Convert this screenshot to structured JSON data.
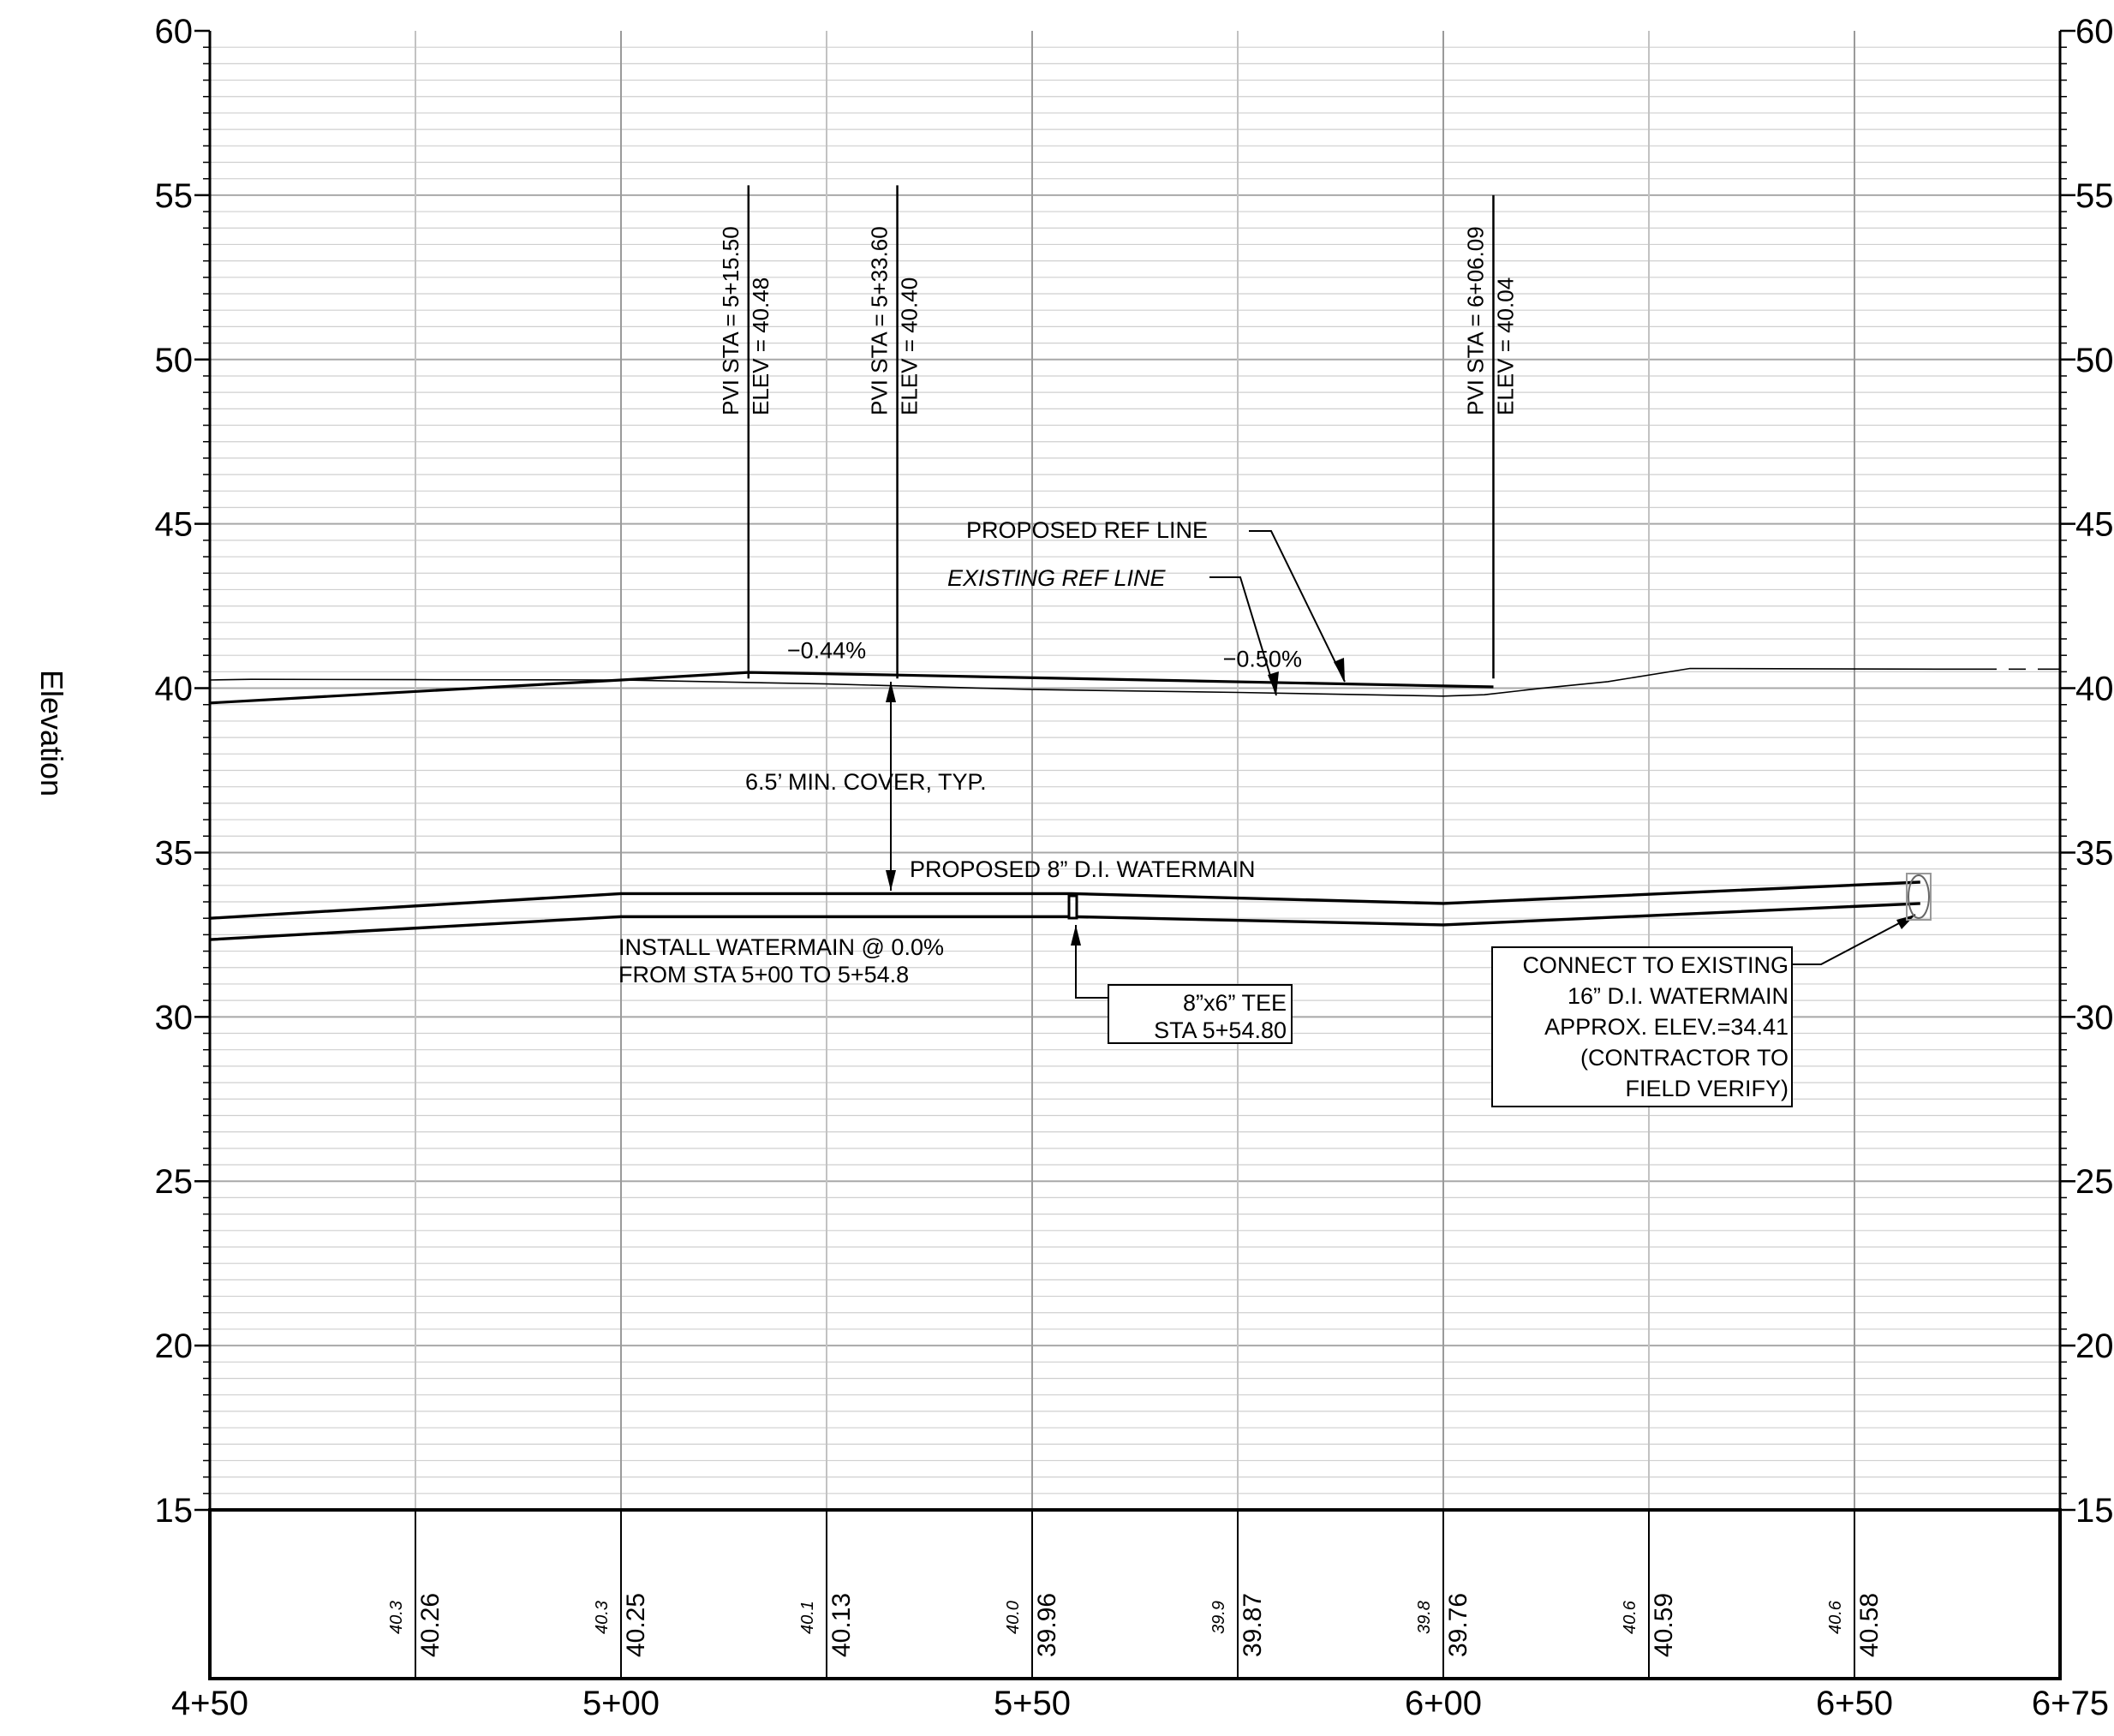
{
  "chart_data": {
    "type": "profile",
    "ylabel": "Elevation",
    "xlabel": "",
    "x_unit": "station (ft)",
    "xlim": [
      450,
      675
    ],
    "ylim": [
      15,
      60
    ],
    "x_ticks": [
      {
        "value": 450,
        "label": "4+50"
      },
      {
        "value": 500,
        "label": "5+00"
      },
      {
        "value": 550,
        "label": "5+50"
      },
      {
        "value": 600,
        "label": "6+00"
      },
      {
        "value": 650,
        "label": "6+50"
      },
      {
        "value": 675,
        "label": "6+75"
      }
    ],
    "y_ticks": [
      {
        "value": 60,
        "left": "60",
        "right": "60"
      },
      {
        "value": 55,
        "left": "55",
        "right": "55"
      },
      {
        "value": 50,
        "left": "50",
        "right": "50"
      },
      {
        "value": 45,
        "left": "45",
        "right": "45"
      },
      {
        "value": 40,
        "left": "40",
        "right": "40"
      },
      {
        "value": 35,
        "left": "35",
        "right": "35"
      },
      {
        "value": 30,
        "left": "30",
        "right": "30"
      },
      {
        "value": 25,
        "left": "25",
        "right": "25"
      },
      {
        "value": 20,
        "left": "20",
        "right": "20"
      },
      {
        "value": 15,
        "left": "15",
        "right": "15"
      }
    ],
    "grid": {
      "minor_y_step": 0.5,
      "major_x_step": 25
    },
    "series": [
      {
        "name": "PROPOSED REF LINE",
        "kind": "proposed_grade",
        "x": [
          450,
          500,
          515.5,
          533.6,
          606.09
        ],
        "y": [
          39.55,
          40.25,
          40.48,
          40.4,
          40.04
        ]
      },
      {
        "name": "EXISTING REF LINE",
        "kind": "existing_grade",
        "x": [
          450,
          455,
          475,
          500,
          525,
          550,
          575,
          600,
          605,
          612,
          620,
          630,
          660
        ],
        "y": [
          40.25,
          40.27,
          40.26,
          40.25,
          40.13,
          39.96,
          39.87,
          39.76,
          39.8,
          40.0,
          40.2,
          40.6,
          40.58
        ]
      },
      {
        "name": "EXISTING REF LINE (dashed)",
        "kind": "existing_grade_dashed",
        "x": [
          660,
          675
        ],
        "y": [
          40.58,
          40.58
        ]
      },
      {
        "name": "PROPOSED 8\" D.I. WATERMAIN",
        "kind": "pipe_top",
        "x": [
          450,
          500,
          554.8,
          600,
          658
        ],
        "y": [
          33.0,
          33.75,
          33.75,
          33.45,
          34.1
        ]
      },
      {
        "name": "PROPOSED 8\" D.I. WATERMAIN",
        "kind": "pipe_bottom",
        "x": [
          450,
          500,
          554.8,
          600,
          658
        ],
        "y": [
          32.35,
          33.05,
          33.05,
          32.8,
          33.45
        ]
      }
    ],
    "pvis": [
      {
        "x": 515.5,
        "sta_text": "PVI STA = 5+15.50",
        "elev_text": "ELEV = 40.48",
        "top": 55.3
      },
      {
        "x": 533.6,
        "sta_text": "PVI STA = 5+33.60",
        "elev_text": "ELEV = 40.40",
        "top": 55.3
      },
      {
        "x": 606.09,
        "sta_text": "PVI STA = 6+06.09",
        "elev_text": "ELEV = 40.04",
        "top": 55.0
      }
    ],
    "grades": [
      {
        "text": "−0.44%",
        "x": 525,
        "y": 40.7
      },
      {
        "text": "−0.50%",
        "x": 578,
        "y": 40.45
      }
    ],
    "bottom_table": {
      "stations": [
        475,
        500,
        525,
        550,
        575,
        600,
        625,
        650
      ],
      "existing": [
        "40.3",
        "40.3",
        "40.1",
        "40.0",
        "39.9",
        "39.8",
        "40.6",
        "40.6"
      ],
      "proposed": [
        "40.26",
        "40.25",
        "40.13",
        "39.96",
        "39.87",
        "39.76",
        "40.59",
        "40.58"
      ]
    },
    "annotations": {
      "proposed_ref_line": "PROPOSED REF LINE",
      "existing_ref_line": "EXISTING REF LINE",
      "min_cover": "6.5’ MIN. COVER, TYP.",
      "proposed_watermain": "PROPOSED 8” D.I. WATERMAIN",
      "install_line1": "INSTALL WATERMAIN @ 0.0%",
      "install_line2": "FROM STA 5+00 TO 5+54.8",
      "tee_line1": "8”x6” TEE",
      "tee_line2": "STA 5+54.80",
      "connect_line1": "CONNECT TO EXISTING",
      "connect_line2": "16” D.I. WATERMAIN",
      "connect_line3": "APPROX. ELEV.=34.41",
      "connect_line4": "(CONTRACTOR TO",
      "connect_line5": "FIELD VERIFY)"
    }
  }
}
